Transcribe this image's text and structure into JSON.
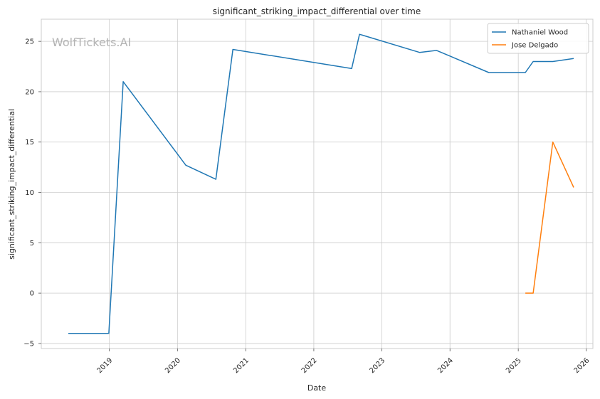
{
  "chart_data": {
    "type": "line",
    "title": "significant_striking_impact_differential over time",
    "xlabel": "Date",
    "ylabel": "significant_striking_impact_differential",
    "watermark": "WolfTickets.AI",
    "xlim": [
      "2018-01-01",
      "2026-02-05"
    ],
    "ylim": [
      -5.5,
      27.2
    ],
    "x_ticks": [
      "2019-01-01",
      "2020-01-01",
      "2021-01-01",
      "2022-01-01",
      "2023-01-01",
      "2024-01-01",
      "2025-01-01",
      "2026-01-01"
    ],
    "x_tick_labels": [
      "2019",
      "2020",
      "2021",
      "2022",
      "2023",
      "2024",
      "2025",
      "2026"
    ],
    "y_ticks": [
      -5,
      0,
      5,
      10,
      15,
      20,
      25
    ],
    "y_tick_labels": [
      "−5",
      "0",
      "5",
      "10",
      "15",
      "20",
      "25"
    ],
    "grid": true,
    "legend_position": "top-right",
    "series": [
      {
        "name": "Nathaniel Wood",
        "color": "#1f77b4",
        "points": [
          {
            "x": "2018-05-26",
            "y": -4.0
          },
          {
            "x": "2018-12-29",
            "y": -4.0
          },
          {
            "x": "2019-03-16",
            "y": 21.0
          },
          {
            "x": "2020-02-15",
            "y": 12.7
          },
          {
            "x": "2020-07-25",
            "y": 11.3
          },
          {
            "x": "2020-10-24",
            "y": 24.2
          },
          {
            "x": "2022-07-23",
            "y": 22.3
          },
          {
            "x": "2022-09-03",
            "y": 25.7
          },
          {
            "x": "2023-07-22",
            "y": 23.9
          },
          {
            "x": "2023-10-21",
            "y": 24.1
          },
          {
            "x": "2024-07-27",
            "y": 21.9
          },
          {
            "x": "2025-02-08",
            "y": 21.9
          },
          {
            "x": "2025-03-22",
            "y": 23.0
          },
          {
            "x": "2025-07-05",
            "y": 23.0
          },
          {
            "x": "2025-10-25",
            "y": 23.3
          }
        ]
      },
      {
        "name": "Jose Delgado",
        "color": "#ff7f0e",
        "points": [
          {
            "x": "2025-02-08",
            "y": 0.0
          },
          {
            "x": "2025-03-22",
            "y": 0.0
          },
          {
            "x": "2025-07-05",
            "y": 15.0
          },
          {
            "x": "2025-10-25",
            "y": 10.5
          }
        ]
      }
    ]
  }
}
